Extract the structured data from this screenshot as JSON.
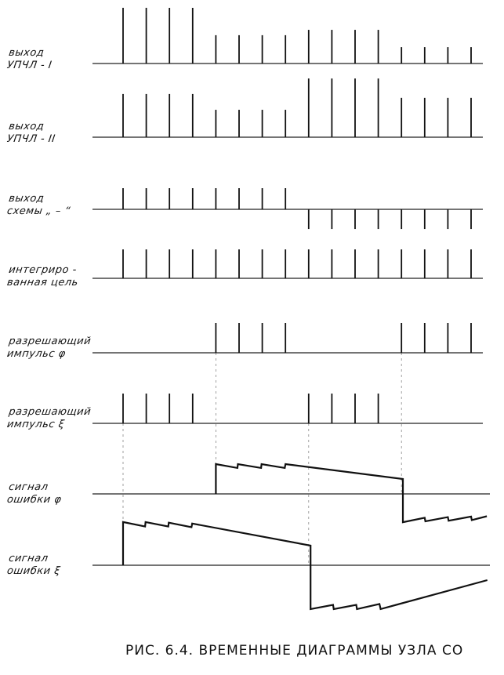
{
  "caption": "РИС. 6.4. ВРЕМЕННЫЕ ДИАГРАММЫ УЗЛА СО",
  "pulse_count": 16,
  "rows": [
    {
      "id": "upchl-1",
      "line1": "выход",
      "line2": "УПЧЛ - I",
      "kind": "pulses",
      "amplitudes": [
        1.87,
        1.87,
        1.87,
        1.87,
        0.95,
        0.95,
        0.95,
        0.95,
        1.13,
        1.13,
        1.13,
        1.13,
        0.55,
        0.55,
        0.55,
        0.55
      ]
    },
    {
      "id": "upchl-2",
      "line1": "выход",
      "line2": "УПЧЛ - II",
      "kind": "pulses",
      "amplitudes": [
        1.45,
        1.45,
        1.45,
        1.45,
        0.92,
        0.92,
        0.92,
        0.92,
        1.97,
        1.97,
        1.97,
        1.97,
        1.32,
        1.32,
        1.32,
        1.32
      ]
    },
    {
      "id": "minus-circuit",
      "line1": "выход",
      "line2": "схемы „ – “",
      "kind": "pulses",
      "amplitudes": [
        0.71,
        0.71,
        0.71,
        0.71,
        0.71,
        0.71,
        0.71,
        0.71,
        -0.66,
        -0.66,
        -0.66,
        -0.66,
        -0.66,
        -0.66,
        -0.66,
        -0.66
      ]
    },
    {
      "id": "integrated-target",
      "line1": "интегриро -",
      "line2": "ванная цель",
      "kind": "pulses",
      "amplitudes": [
        0.97,
        0.97,
        0.97,
        0.97,
        0.97,
        0.97,
        0.97,
        0.97,
        0.97,
        0.97,
        0.97,
        0.97,
        0.97,
        0.97,
        0.97,
        0.97
      ]
    },
    {
      "id": "enable-phi",
      "line1": "разрешающий",
      "line2": "импульс φ",
      "kind": "pulses",
      "amplitudes": [
        0,
        0,
        0,
        0,
        1,
        1,
        1,
        1,
        0,
        0,
        0,
        0,
        1,
        1,
        1,
        1
      ]
    },
    {
      "id": "enable-xi",
      "line1": "разрешающий",
      "line2": "импульс ξ",
      "kind": "pulses",
      "amplitudes": [
        1,
        1,
        1,
        1,
        0,
        0,
        0,
        0,
        1,
        1,
        1,
        1,
        0,
        0,
        0,
        0
      ]
    },
    {
      "id": "error-phi",
      "line1": "сигнал",
      "line2": "ошибки φ",
      "kind": "waveform",
      "points": [
        [
          5,
          0
        ],
        [
          5,
          1
        ],
        [
          5.93,
          0.87
        ],
        [
          5.95,
          1
        ],
        [
          6.95,
          0.87
        ],
        [
          6.97,
          1
        ],
        [
          7.97,
          0.87
        ],
        [
          8,
          1
        ],
        [
          13.06,
          0.5
        ],
        [
          13.06,
          -0.95
        ],
        [
          14,
          -0.8
        ],
        [
          14.03,
          -0.92
        ],
        [
          15,
          -0.78
        ],
        [
          15.03,
          -0.9
        ],
        [
          16,
          -0.76
        ],
        [
          16.03,
          -0.88
        ],
        [
          16.68,
          -0.75
        ]
      ]
    },
    {
      "id": "error-xi",
      "line1": "сигнал",
      "line2": "ошибки ξ",
      "kind": "waveform",
      "points": [
        [
          1,
          0
        ],
        [
          1,
          1.45
        ],
        [
          1.95,
          1.3
        ],
        [
          1.97,
          1.45
        ],
        [
          2.95,
          1.3
        ],
        [
          2.97,
          1.43
        ],
        [
          3.95,
          1.28
        ],
        [
          3.98,
          1.4
        ],
        [
          9.08,
          0.66
        ],
        [
          9.08,
          -1.47
        ],
        [
          10.05,
          -1.33
        ],
        [
          10.08,
          -1.47
        ],
        [
          11.05,
          -1.33
        ],
        [
          11.08,
          -1.47
        ],
        [
          12.05,
          -1.3
        ],
        [
          12.1,
          -1.47
        ],
        [
          16.7,
          -0.5
        ]
      ]
    }
  ],
  "sync_markers": [
    1,
    5,
    9,
    13
  ]
}
